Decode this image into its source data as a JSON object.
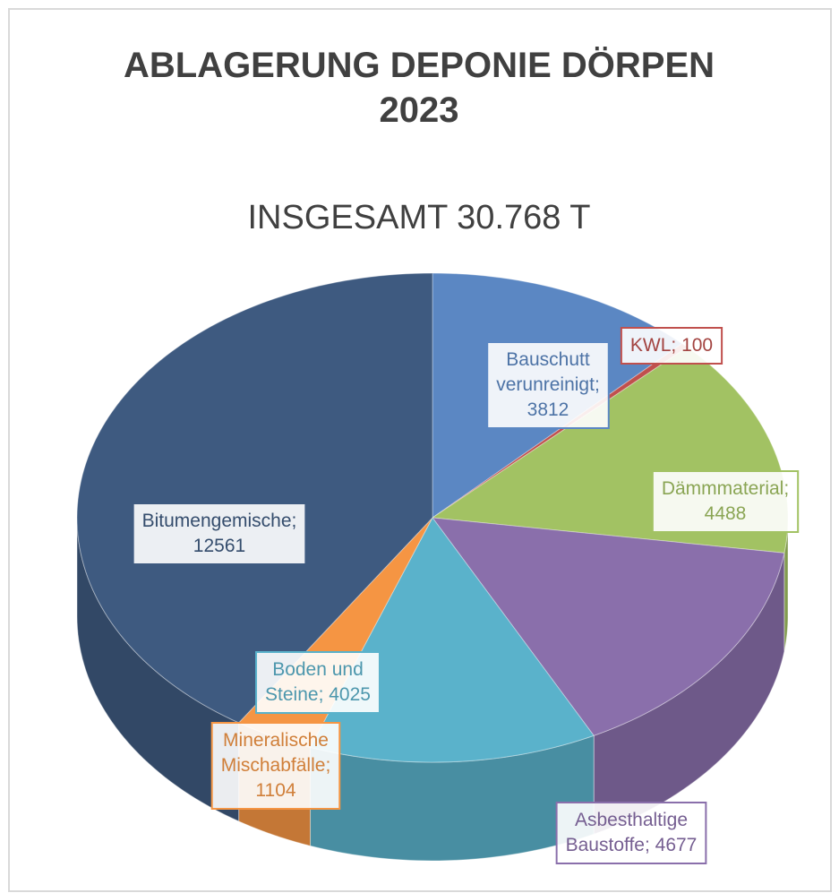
{
  "chart_data": {
    "type": "pie3d",
    "title": "ABLAGERUNG  DEPONIE DÖRPEN 2023",
    "subtitle": "INSGESAMT  30.768 T",
    "values": [
      3812,
      100,
      4488,
      4677,
      4025,
      1104,
      12561
    ],
    "value_labels": [
      "Bauschutt verunreinigt; 3812",
      "KWL; 100",
      "Dämmmaterial; 4488",
      "Asbesthaltige Baustoffe; 4677",
      "Boden und Steine; 4025",
      "Mineralische Mischabfälle; 1104",
      "Bitumengemische; 12561"
    ],
    "colors": [
      "#5b87c3",
      "#c0504d",
      "#a2c263",
      "#8a6fab",
      "#5ab2cb",
      "#f59543",
      "#3e5a80"
    ]
  }
}
